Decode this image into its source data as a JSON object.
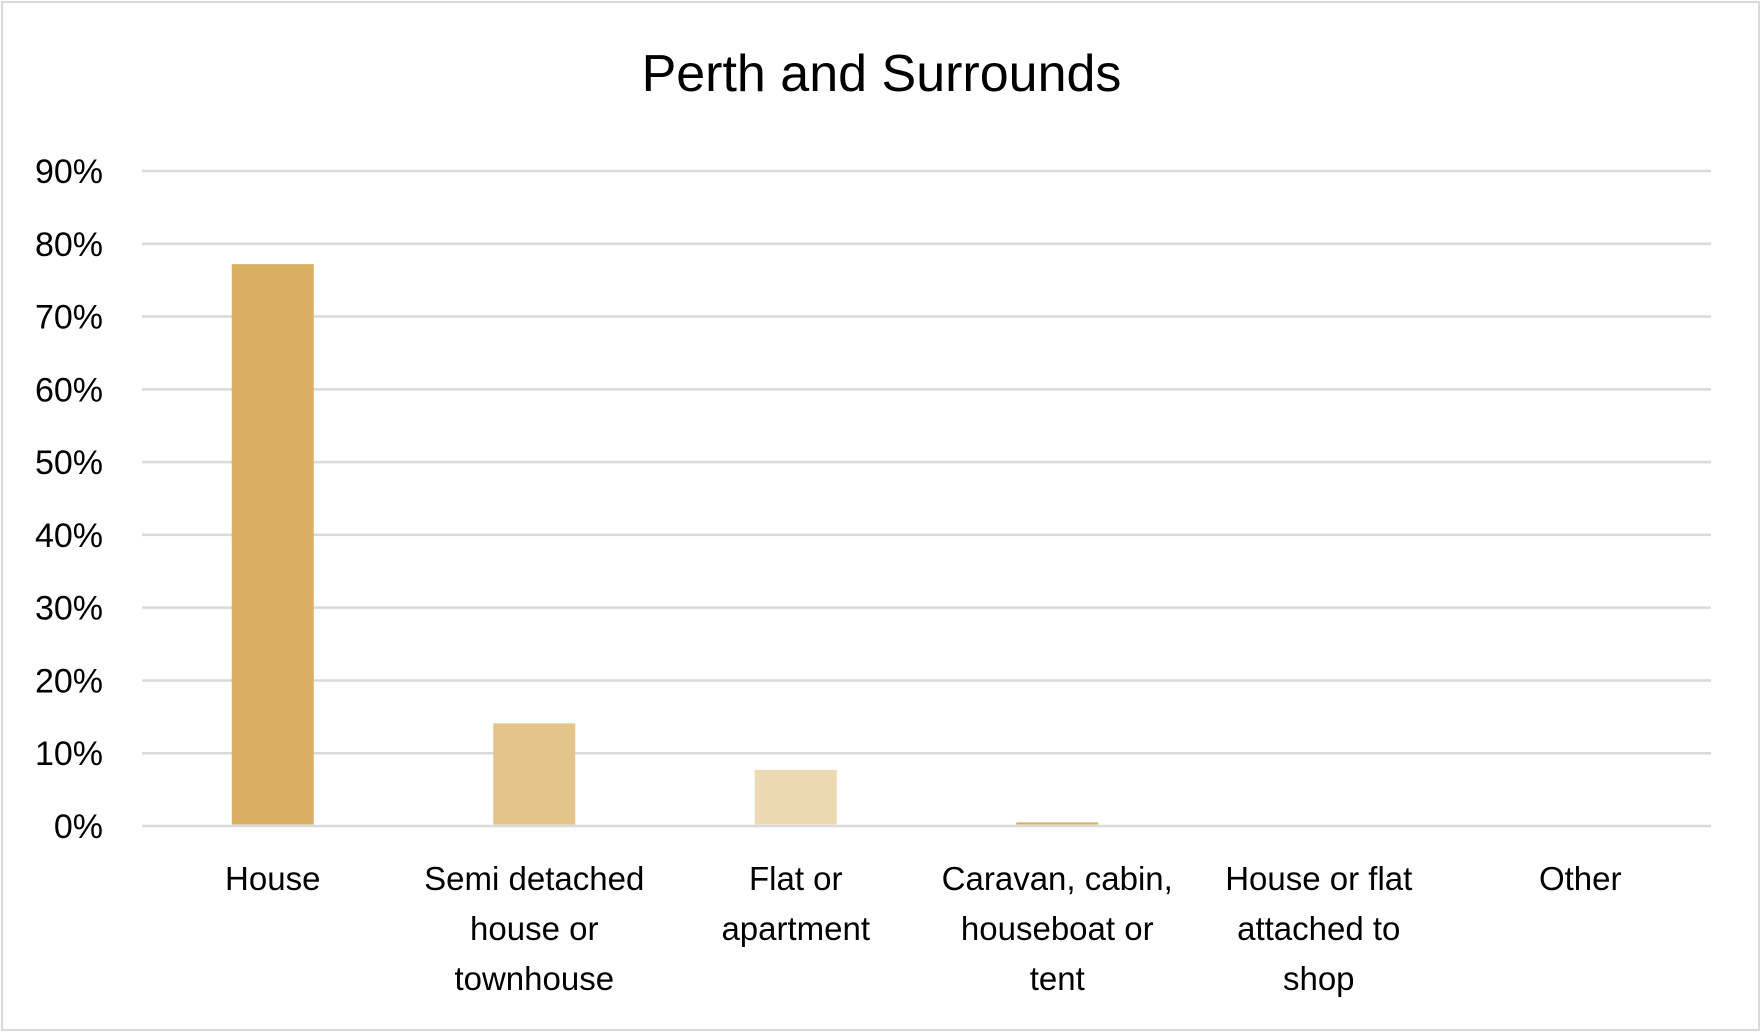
{
  "chart_data": {
    "type": "bar",
    "title": "Perth and Surrounds",
    "categories": [
      [
        "House"
      ],
      [
        "Semi detached",
        "house or",
        "townhouse"
      ],
      [
        "Flat or",
        "apartment"
      ],
      [
        "Caravan, cabin,",
        "houseboat or",
        "tent"
      ],
      [
        "House or flat",
        "attached to",
        "shop"
      ],
      [
        "Other"
      ]
    ],
    "values": [
      77.2,
      14.1,
      7.7,
      0.5,
      0.1,
      0.0
    ],
    "colors": [
      "#D9B062",
      "#E3C48A",
      "#EDD9B1",
      "#D9B062",
      "#D9B062",
      "#D9B062"
    ],
    "ylim": [
      0,
      90
    ],
    "yticks": [
      "0%",
      "10%",
      "20%",
      "30%",
      "40%",
      "50%",
      "60%",
      "70%",
      "80%",
      "90%"
    ],
    "xlabel": "",
    "ylabel": "",
    "grid": true,
    "legend": "none"
  }
}
